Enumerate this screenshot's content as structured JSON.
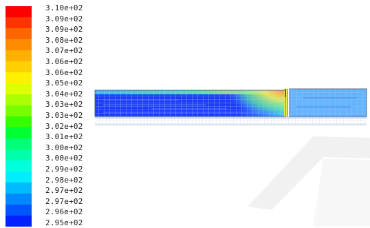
{
  "legend": {
    "labels": [
      "3.10e+02",
      "3.09e+02",
      "3.09e+02",
      "3.08e+02",
      "3.07e+02",
      "3.06e+02",
      "3.06e+02",
      "3.05e+02",
      "3.04e+02",
      "3.03e+02",
      "3.03e+02",
      "3.02e+02",
      "3.01e+02",
      "3.00e+02",
      "3.00e+02",
      "2.99e+02",
      "2.98e+02",
      "2.97e+02",
      "2.97e+02",
      "2.96e+02",
      "2.95e+02"
    ],
    "colors": [
      "#ff0000",
      "#ff3300",
      "#ff6600",
      "#ff8c00",
      "#ffb000",
      "#ffd000",
      "#fff000",
      "#ddff00",
      "#aaff00",
      "#77ff00",
      "#33ff00",
      "#00ff33",
      "#00ff77",
      "#00ffaa",
      "#00ffdd",
      "#00eeff",
      "#00bbff",
      "#0088ff",
      "#0055ff",
      "#0022ff",
      "#0000ff"
    ]
  },
  "colors": {
    "cold": "#1e3cff",
    "mid_blue": "#3c8cff",
    "cyan": "#46c8ff",
    "green": "#5aff8c",
    "yellow": "#f0f050",
    "orange": "#ff9632",
    "red": "#ff2828",
    "mesh_line": "#b4c8e6",
    "frame_line": "#3c5078"
  }
}
